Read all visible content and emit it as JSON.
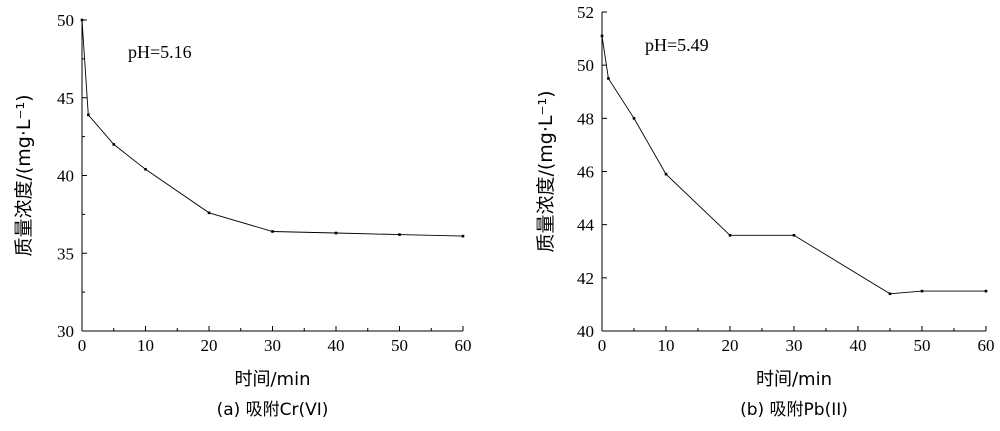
{
  "chart_data": [
    {
      "type": "line",
      "caption": "(a) 吸附Cr(VI)",
      "xlabel": "时间/min",
      "ylabel": "质量浓度/(mg·L⁻¹)",
      "annotation": "pH=5.16",
      "xlim": [
        0,
        60
      ],
      "ylim": [
        30,
        50
      ],
      "x_ticks": [
        0,
        10,
        20,
        30,
        40,
        50,
        60
      ],
      "y_ticks": [
        30,
        35,
        40,
        45,
        50
      ],
      "x": [
        0,
        1,
        5,
        10,
        20,
        30,
        40,
        50,
        60
      ],
      "y": [
        50.0,
        43.9,
        42.0,
        40.4,
        37.6,
        36.4,
        36.3,
        36.2,
        36.1
      ],
      "line_color": "#000000"
    },
    {
      "type": "line",
      "caption": "(b) 吸附Pb(II)",
      "xlabel": "时间/min",
      "ylabel": "质量浓度/(mg·L⁻¹)",
      "annotation": "pH=5.49",
      "xlim": [
        0,
        60
      ],
      "ylim": [
        40,
        52
      ],
      "x_ticks": [
        0,
        10,
        20,
        30,
        40,
        50,
        60
      ],
      "y_ticks": [
        40,
        42,
        44,
        46,
        48,
        50,
        52
      ],
      "x": [
        0,
        1,
        5,
        10,
        20,
        30,
        45,
        50,
        60
      ],
      "y": [
        51.1,
        49.5,
        48.0,
        45.9,
        43.6,
        43.6,
        41.4,
        41.5,
        41.5
      ],
      "line_color": "#000000"
    }
  ]
}
